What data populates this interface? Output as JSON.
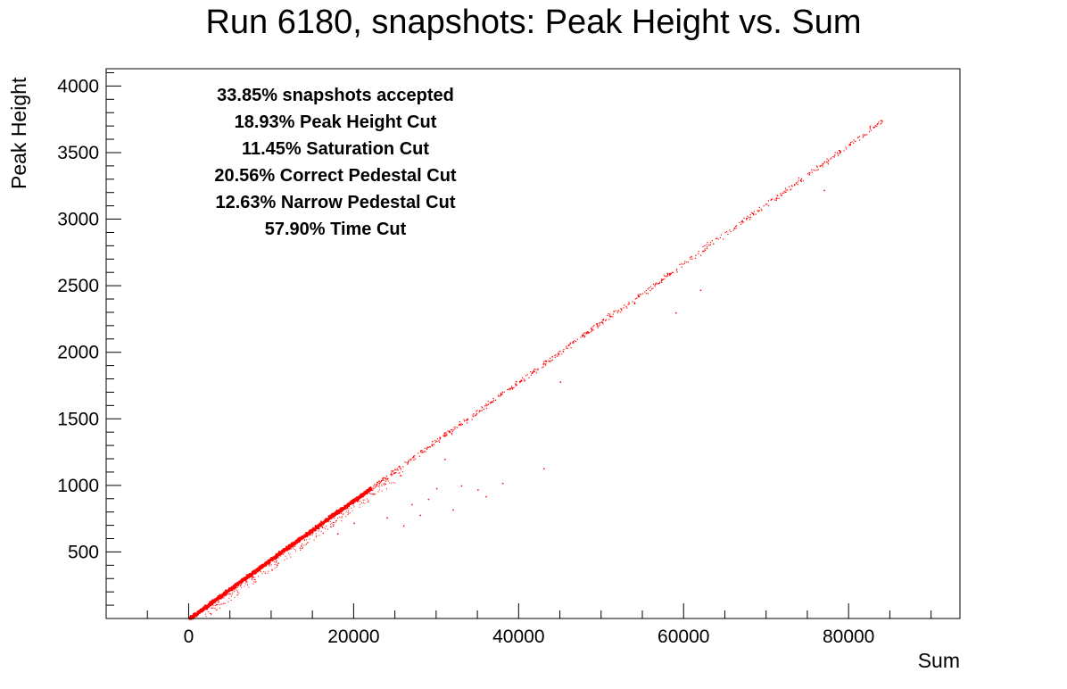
{
  "chart_data": {
    "type": "scatter",
    "title": "Run 6180, snapshots: Peak Height vs. Sum",
    "xlabel": "Sum",
    "ylabel": "Peak Height",
    "xlim": [
      -10000,
      93500
    ],
    "ylim": [
      0,
      4130
    ],
    "x_ticks": [
      0,
      20000,
      40000,
      60000,
      80000
    ],
    "x_tick_labels": [
      "0",
      "20000",
      "40000",
      "60000",
      "80000"
    ],
    "y_ticks": [
      500,
      1000,
      1500,
      2000,
      2500,
      3000,
      3500,
      4000
    ],
    "y_tick_labels": [
      "500",
      "1000",
      "1500",
      "2000",
      "2500",
      "3000",
      "3500",
      "4000"
    ],
    "marker_color": "#ff0000",
    "grid": false,
    "legend": "none",
    "annotations": [
      "33.85% snapshots accepted",
      "18.93% Peak Height Cut",
      "11.45% Saturation Cut",
      "20.56% Correct Pedestal Cut",
      "12.63% Narrow Pedestal Cut",
      "57.90% Time Cut"
    ],
    "series": [
      {
        "relationship": "peak_height ≈ 0.0445 × sum",
        "dense_band_sum_range": [
          0,
          22000
        ],
        "sparse_tail_sum_range": [
          22000,
          84000
        ],
        "max_point": [
          84000,
          3740
        ],
        "x": [
          0,
          2000,
          4000,
          6000,
          8000,
          10000,
          12000,
          14000,
          16000,
          18000,
          20000,
          22000,
          25000,
          28000,
          31000,
          34000,
          37000,
          40000,
          43000,
          46000,
          50000,
          54000,
          58000,
          62000,
          66000,
          70000,
          74000,
          78000,
          82000,
          84000
        ],
        "y": [
          0,
          90,
          180,
          270,
          360,
          450,
          540,
          625,
          715,
          805,
          890,
          980,
          1110,
          1245,
          1380,
          1510,
          1645,
          1780,
          1915,
          2050,
          2225,
          2400,
          2580,
          2760,
          2935,
          3115,
          3290,
          3470,
          3650,
          3740
        ],
        "outliers": [
          [
            24000,
            760
          ],
          [
            27000,
            860
          ],
          [
            29000,
            900
          ],
          [
            30000,
            980
          ],
          [
            32000,
            820
          ],
          [
            33000,
            1000
          ],
          [
            35000,
            970
          ],
          [
            36000,
            920
          ],
          [
            38000,
            1020
          ],
          [
            31000,
            1200
          ],
          [
            43000,
            1130
          ],
          [
            45000,
            1780
          ],
          [
            54000,
            2370
          ],
          [
            59000,
            2300
          ],
          [
            62000,
            2470
          ],
          [
            77000,
            3220
          ],
          [
            26000,
            700
          ],
          [
            28000,
            780
          ],
          [
            20000,
            720
          ],
          [
            18000,
            640
          ]
        ]
      }
    ]
  }
}
